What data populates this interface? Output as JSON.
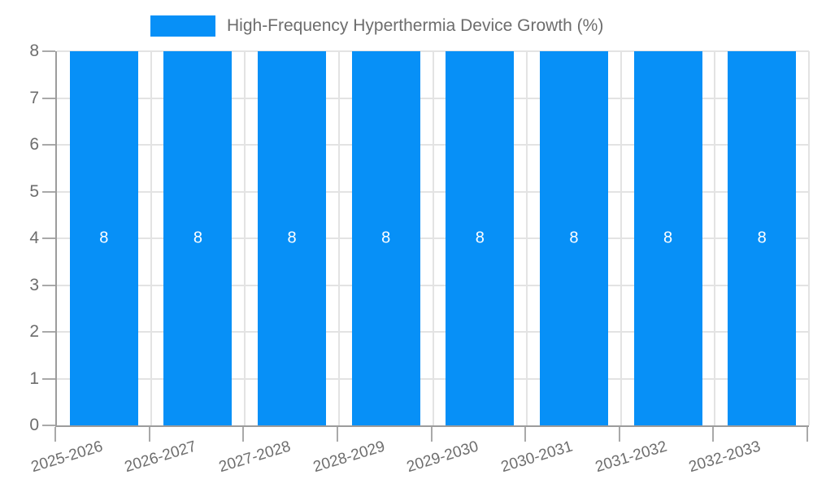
{
  "legend": {
    "label": "High-Frequency Hyperthermia Device Growth (%)"
  },
  "chart_data": {
    "type": "bar",
    "title": "High-Frequency Hyperthermia Device Growth (%)",
    "categories": [
      "2025-2026",
      "2026-2027",
      "2027-2028",
      "2028-2029",
      "2029-2030",
      "2030-2031",
      "2031-2032",
      "2032-2033"
    ],
    "series": [
      {
        "name": "High-Frequency Hyperthermia Device Growth (%)",
        "values": [
          8,
          8,
          8,
          8,
          8,
          8,
          8,
          8
        ]
      }
    ],
    "bar_value_labels": [
      "8",
      "8",
      "8",
      "8",
      "8",
      "8",
      "8",
      "8"
    ],
    "xlabel": "",
    "ylabel": "",
    "ylim": [
      0,
      8
    ],
    "yticks": [
      0,
      1,
      2,
      3,
      4,
      5,
      6,
      7,
      8
    ],
    "grid": true,
    "legend_position": "top",
    "colors": {
      "bar": "#0790f7",
      "value_label": "#ffffff",
      "grid": "#e3e3e3",
      "axis": "#9c9c9c",
      "tick": "#a9a9a9",
      "text": "#6d6d6d"
    }
  }
}
